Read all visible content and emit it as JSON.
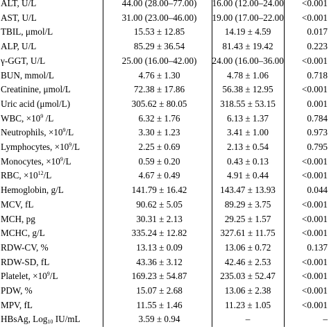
{
  "table": {
    "rows": [
      {
        "label": "ALT, U/L",
        "group1": "44.00 (28.00–77.00)",
        "group2": "16.00 (12.00–24.00)",
        "p": "<0.001"
      },
      {
        "label": "AST, U/L",
        "group1": "31.00 (23.00–46.00)",
        "group2": "19.00 (17.00–22.00)",
        "p": "<0.001"
      },
      {
        "label": "TBIL, μmol/L",
        "group1": "15.53 ± 12.85",
        "group2": "14.19 ± 4.59",
        "p": "0.017"
      },
      {
        "label": "ALP, U/L",
        "group1": "85.29 ± 36.54",
        "group2": "81.43 ± 19.42",
        "p": "0.223"
      },
      {
        "label": "γ-GGT, U/L",
        "group1": "25.00 (16.00–42.00)",
        "group2": "24.00 (16.00–36.00)",
        "p": "<0.001"
      },
      {
        "label": "BUN, mmol/L",
        "group1": "4.76 ± 1.30",
        "group2": "4.78 ± 1.06",
        "p": "0.718"
      },
      {
        "label": "Creatinine, μmol/L",
        "group1": "72.38 ± 17.86",
        "group2": "56.38 ± 12.95",
        "p": "<0.001"
      },
      {
        "label": "Uric acid (μmol/L)",
        "group1": "305.62 ± 80.05",
        "group2": "318.55 ± 53.15",
        "p": "0.001"
      },
      {
        "label": "WBC, ×10",
        "label_sup": "9",
        "label_tail": " /L",
        "group1": "6.32 ± 1.76",
        "group2": "6.13 ± 1.37",
        "p": "0.784"
      },
      {
        "label": "Neutrophils, ×10",
        "label_sup": "9",
        "label_tail": "/L",
        "group1": "3.30 ± 1.23",
        "group2": "3.41 ± 1.00",
        "p": "0.973"
      },
      {
        "label": "Lymphocytes, ×10",
        "label_sup": "9",
        "label_tail": "/L",
        "group1": "2.25 ± 0.69",
        "group2": "2.13 ± 0.54",
        "p": "0.795"
      },
      {
        "label": "Monocytes, ×10",
        "label_sup": "9",
        "label_tail": "/L",
        "group1": "0.59 ± 0.20",
        "group2": "0.43 ± 0.13",
        "p": "<0.001"
      },
      {
        "label": "RBC, ×10",
        "label_sup": "12",
        "label_tail": "/L",
        "group1": "4.67 ± 0.49",
        "group2": "4.91 ± 0.44",
        "p": "<0.001"
      },
      {
        "label": "Hemoglobin, g/L",
        "group1": "141.79 ± 16.42",
        "group2": "143.47 ± 13.93",
        "p": "0.044"
      },
      {
        "label": "MCV, fL",
        "group1": "90.62 ± 5.05",
        "group2": "89.29 ± 3.75",
        "p": "<0.001"
      },
      {
        "label": "MCH, pg",
        "group1": "30.31 ± 2.13",
        "group2": "29.25 ± 1.57",
        "p": "<0.001"
      },
      {
        "label": "MCHC, g/L",
        "group1": "335.24 ± 12.82",
        "group2": "327.61 ± 11.75",
        "p": "<0.001"
      },
      {
        "label": "RDW-CV, %",
        "group1": "13.13 ± 0.09",
        "group2": "13.06 ± 0.72",
        "p": "0.137"
      },
      {
        "label": "RDW-SD, fL",
        "group1": "43.36 ± 3.12",
        "group2": "42.46 ± 2.53",
        "p": "<0.001"
      },
      {
        "label": "Platelet, ×10",
        "label_sup": "9",
        "label_tail": "/L",
        "group1": "169.23 ± 54.87",
        "group2": "235.03 ± 52.47",
        "p": "<0.001"
      },
      {
        "label": "PDW, %",
        "group1": "15.07 ± 2.68",
        "group2": "13.06 ± 2.38",
        "p": "<0.001"
      },
      {
        "label": "MPV, fL",
        "group1": "11.55 ± 1.46",
        "group2": "11.23 ± 1.05",
        "p": "<0.001"
      },
      {
        "label": "HBsAg, Log",
        "label_sub": "10",
        "label_tail": " IU/mL",
        "group1": "3.59 ± 0.94",
        "group2": "–",
        "p": "–"
      }
    ]
  }
}
